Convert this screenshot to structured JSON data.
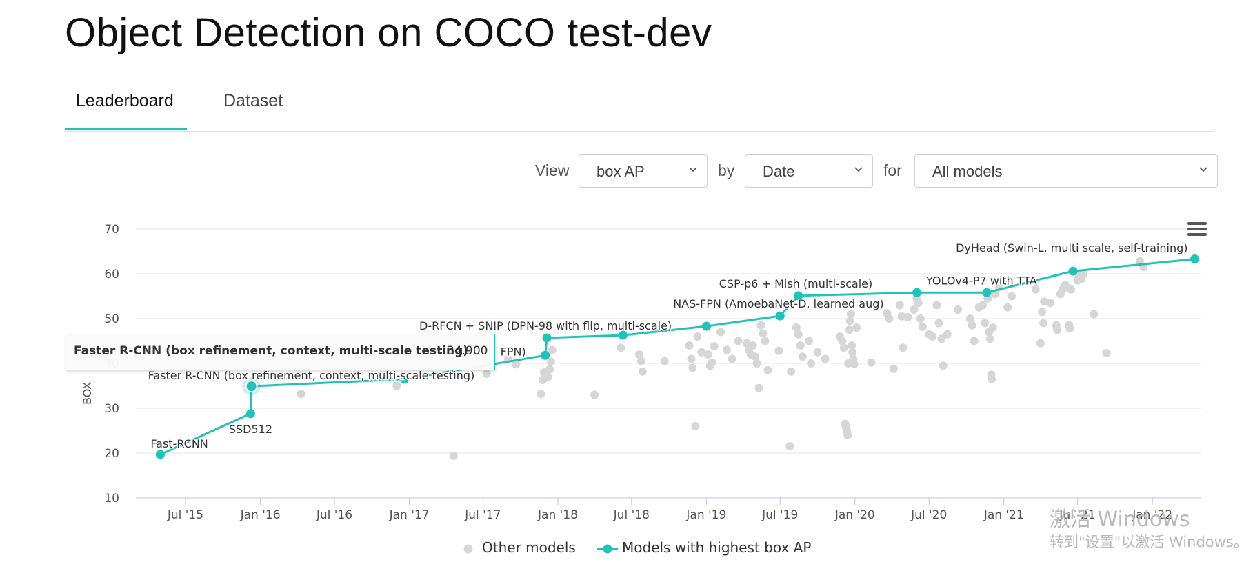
{
  "page": {
    "title": "Object Detection on COCO test-dev"
  },
  "tabs": [
    {
      "label": "Leaderboard",
      "active": true
    },
    {
      "label": "Dataset",
      "active": false
    }
  ],
  "controls": {
    "view_label": "View",
    "view_value": "box AP",
    "by_label": "by",
    "by_value": "Date",
    "for_label": "for",
    "for_value": "All models"
  },
  "colors": {
    "accent": "#21c2b9",
    "other_models": "#d6d6d6",
    "grid": "#e6e6e6"
  },
  "chart_data": {
    "type": "scatter",
    "ylabel": "BOX",
    "ylim": [
      10,
      70
    ],
    "yticks": [
      10,
      20,
      30,
      40,
      50,
      60,
      70
    ],
    "x_range": [
      "2015-03-01",
      "2022-05-01"
    ],
    "xticks": [
      {
        "date": "2015-07-01",
        "label": "Jul '15"
      },
      {
        "date": "2016-01-01",
        "label": "Jan '16"
      },
      {
        "date": "2016-07-01",
        "label": "Jul '16"
      },
      {
        "date": "2017-01-01",
        "label": "Jan '17"
      },
      {
        "date": "2017-07-01",
        "label": "Jul '17"
      },
      {
        "date": "2018-01-01",
        "label": "Jan '18"
      },
      {
        "date": "2018-07-01",
        "label": "Jul '18"
      },
      {
        "date": "2019-01-01",
        "label": "Jan '19"
      },
      {
        "date": "2019-07-01",
        "label": "Jul '19"
      },
      {
        "date": "2020-01-01",
        "label": "Jan '20"
      },
      {
        "date": "2020-07-01",
        "label": "Jul '20"
      },
      {
        "date": "2021-01-01",
        "label": "Jan '21"
      },
      {
        "date": "2021-07-01",
        "label": "Jul '21"
      },
      {
        "date": "2022-01-01",
        "label": "Jan '22"
      }
    ],
    "legend": [
      "Other models",
      "Models with highest box AP"
    ],
    "legend_position": "bottom-center",
    "series": [
      {
        "name": "Models with highest box AP",
        "points": [
          {
            "date": "2015-04-30",
            "y": 19.7,
            "label": "Fast-RCNN"
          },
          {
            "date": "2015-12-08",
            "y": 28.8,
            "label": "SSD512"
          },
          {
            "date": "2015-12-10",
            "y": 34.9,
            "label": "Faster R-CNN (box refinement, context, multi-scale testing)"
          },
          {
            "date": "2016-12-20",
            "y": 36.5,
            "label": ""
          },
          {
            "date": "2017-12-01",
            "y": 41.8,
            "label": "FPN)"
          },
          {
            "date": "2017-12-05",
            "y": 45.7,
            "label": "D-RFCN + SNIP (DPN-98 with flip, multi-scale)"
          },
          {
            "date": "2018-06-10",
            "y": 46.3,
            "label": ""
          },
          {
            "date": "2019-01-01",
            "y": 48.3,
            "label": ""
          },
          {
            "date": "2019-07-01",
            "y": 50.6,
            "label": "NAS-FPN (AmoebaNet-D, learned aug)"
          },
          {
            "date": "2019-08-15",
            "y": 55.1,
            "label": "CSP-p6 + Mish (multi-scale)"
          },
          {
            "date": "2020-06-01",
            "y": 55.8,
            "label": ""
          },
          {
            "date": "2020-11-20",
            "y": 55.8,
            "label": "YOLOv4-P7 with TTA"
          },
          {
            "date": "2021-06-20",
            "y": 60.6,
            "label": "DyHead (Swin-L, multi scale, self-training)"
          },
          {
            "date": "2022-04-15",
            "y": 63.3,
            "label": ""
          }
        ]
      },
      {
        "name": "Other models",
        "points": [
          {
            "date": "2016-04-10",
            "y": 33.2
          },
          {
            "date": "2016-12-01",
            "y": 35.0
          },
          {
            "date": "2017-04-20",
            "y": 19.4
          },
          {
            "date": "2017-07-10",
            "y": 37.7
          },
          {
            "date": "2017-07-15",
            "y": 40.2
          },
          {
            "date": "2017-09-01",
            "y": 41.0
          },
          {
            "date": "2017-09-20",
            "y": 39.8
          },
          {
            "date": "2017-11-20",
            "y": 33.2
          },
          {
            "date": "2017-11-25",
            "y": 36.3
          },
          {
            "date": "2017-11-28",
            "y": 38.0
          },
          {
            "date": "2017-12-08",
            "y": 37.0
          },
          {
            "date": "2017-12-12",
            "y": 38.7
          },
          {
            "date": "2017-12-15",
            "y": 40.4
          },
          {
            "date": "2017-12-18",
            "y": 43.0
          },
          {
            "date": "2018-04-01",
            "y": 33.0
          },
          {
            "date": "2018-06-05",
            "y": 43.5
          },
          {
            "date": "2018-07-20",
            "y": 42.0
          },
          {
            "date": "2018-07-25",
            "y": 40.5
          },
          {
            "date": "2018-07-28",
            "y": 38.2
          },
          {
            "date": "2018-09-20",
            "y": 40.5
          },
          {
            "date": "2018-11-20",
            "y": 44.0
          },
          {
            "date": "2018-11-25",
            "y": 41.0
          },
          {
            "date": "2018-11-28",
            "y": 39.0
          },
          {
            "date": "2018-12-05",
            "y": 26.0
          },
          {
            "date": "2018-12-10",
            "y": 46.0
          },
          {
            "date": "2018-12-20",
            "y": 42.5
          },
          {
            "date": "2019-01-05",
            "y": 42.0
          },
          {
            "date": "2019-01-10",
            "y": 39.5
          },
          {
            "date": "2019-01-15",
            "y": 40.2
          },
          {
            "date": "2019-01-20",
            "y": 43.8
          },
          {
            "date": "2019-02-05",
            "y": 47.0
          },
          {
            "date": "2019-02-20",
            "y": 43.0
          },
          {
            "date": "2019-03-05",
            "y": 41.0
          },
          {
            "date": "2019-03-20",
            "y": 45.0
          },
          {
            "date": "2019-04-10",
            "y": 44.5
          },
          {
            "date": "2019-04-15",
            "y": 43.0
          },
          {
            "date": "2019-04-20",
            "y": 42.0
          },
          {
            "date": "2019-04-25",
            "y": 44.0
          },
          {
            "date": "2019-05-01",
            "y": 41.5
          },
          {
            "date": "2019-05-05",
            "y": 40.0
          },
          {
            "date": "2019-05-10",
            "y": 34.5
          },
          {
            "date": "2019-05-15",
            "y": 48.5
          },
          {
            "date": "2019-05-20",
            "y": 46.7
          },
          {
            "date": "2019-05-25",
            "y": 45.0
          },
          {
            "date": "2019-06-01",
            "y": 38.5
          },
          {
            "date": "2019-06-28",
            "y": 42.8
          },
          {
            "date": "2019-07-25",
            "y": 21.5
          },
          {
            "date": "2019-07-28",
            "y": 38.2
          },
          {
            "date": "2019-08-10",
            "y": 48.0
          },
          {
            "date": "2019-08-15",
            "y": 46.5
          },
          {
            "date": "2019-08-20",
            "y": 44.0
          },
          {
            "date": "2019-08-25",
            "y": 41.5
          },
          {
            "date": "2019-09-10",
            "y": 45.0
          },
          {
            "date": "2019-09-15",
            "y": 40.0
          },
          {
            "date": "2019-10-01",
            "y": 42.5
          },
          {
            "date": "2019-10-20",
            "y": 41.0
          },
          {
            "date": "2019-11-25",
            "y": 46.0
          },
          {
            "date": "2019-12-01",
            "y": 45.0
          },
          {
            "date": "2019-12-05",
            "y": 43.5
          },
          {
            "date": "2019-12-08",
            "y": 26.5
          },
          {
            "date": "2019-12-10",
            "y": 25.8
          },
          {
            "date": "2019-12-12",
            "y": 25.0
          },
          {
            "date": "2019-12-14",
            "y": 24.0
          },
          {
            "date": "2019-12-16",
            "y": 40.0
          },
          {
            "date": "2019-12-18",
            "y": 47.5
          },
          {
            "date": "2019-12-20",
            "y": 49.5
          },
          {
            "date": "2019-12-22",
            "y": 51.0
          },
          {
            "date": "2019-12-24",
            "y": 44.0
          },
          {
            "date": "2019-12-26",
            "y": 42.5
          },
          {
            "date": "2019-12-28",
            "y": 41.0
          },
          {
            "date": "2019-12-30",
            "y": 39.8
          },
          {
            "date": "2020-01-05",
            "y": 48.0
          },
          {
            "date": "2020-02-10",
            "y": 40.2
          },
          {
            "date": "2020-03-20",
            "y": 51.2
          },
          {
            "date": "2020-03-25",
            "y": 50.0
          },
          {
            "date": "2020-04-05",
            "y": 38.8
          },
          {
            "date": "2020-04-20",
            "y": 53.0
          },
          {
            "date": "2020-04-25",
            "y": 50.5
          },
          {
            "date": "2020-04-28",
            "y": 43.5
          },
          {
            "date": "2020-05-10",
            "y": 50.3
          },
          {
            "date": "2020-05-25",
            "y": 52.0
          },
          {
            "date": "2020-06-01",
            "y": 54.5
          },
          {
            "date": "2020-06-05",
            "y": 53.5
          },
          {
            "date": "2020-06-10",
            "y": 50.0
          },
          {
            "date": "2020-06-15",
            "y": 48.2
          },
          {
            "date": "2020-07-01",
            "y": 46.5
          },
          {
            "date": "2020-07-10",
            "y": 46.0
          },
          {
            "date": "2020-07-20",
            "y": 53.0
          },
          {
            "date": "2020-07-25",
            "y": 49.0
          },
          {
            "date": "2020-08-01",
            "y": 45.5
          },
          {
            "date": "2020-08-05",
            "y": 39.5
          },
          {
            "date": "2020-08-15",
            "y": 46.5
          },
          {
            "date": "2020-09-10",
            "y": 52.0
          },
          {
            "date": "2020-10-10",
            "y": 50.0
          },
          {
            "date": "2020-10-15",
            "y": 48.5
          },
          {
            "date": "2020-10-20",
            "y": 45.0
          },
          {
            "date": "2020-11-01",
            "y": 52.5
          },
          {
            "date": "2020-11-10",
            "y": 53.0
          },
          {
            "date": "2020-11-15",
            "y": 49.0
          },
          {
            "date": "2020-11-22",
            "y": 54.5
          },
          {
            "date": "2020-11-25",
            "y": 47.0
          },
          {
            "date": "2020-11-28",
            "y": 45.5
          },
          {
            "date": "2020-12-01",
            "y": 37.5
          },
          {
            "date": "2020-12-02",
            "y": 36.5
          },
          {
            "date": "2020-12-05",
            "y": 48.0
          },
          {
            "date": "2020-12-10",
            "y": 55.5
          },
          {
            "date": "2020-12-20",
            "y": 57.0
          },
          {
            "date": "2021-01-10",
            "y": 52.5
          },
          {
            "date": "2021-01-20",
            "y": 55.0
          },
          {
            "date": "2021-03-20",
            "y": 56.5
          },
          {
            "date": "2021-04-01",
            "y": 44.5
          },
          {
            "date": "2021-04-05",
            "y": 51.5
          },
          {
            "date": "2021-04-08",
            "y": 49.0
          },
          {
            "date": "2021-04-10",
            "y": 53.8
          },
          {
            "date": "2021-04-25",
            "y": 53.5
          },
          {
            "date": "2021-05-10",
            "y": 48.5
          },
          {
            "date": "2021-05-12",
            "y": 47.5
          },
          {
            "date": "2021-05-20",
            "y": 55.5
          },
          {
            "date": "2021-05-25",
            "y": 56.5
          },
          {
            "date": "2021-06-01",
            "y": 57.5
          },
          {
            "date": "2021-06-10",
            "y": 48.5
          },
          {
            "date": "2021-06-12",
            "y": 47.8
          },
          {
            "date": "2021-06-15",
            "y": 56.5
          },
          {
            "date": "2021-07-01",
            "y": 58.5
          },
          {
            "date": "2021-07-05",
            "y": 59.5
          },
          {
            "date": "2021-07-10",
            "y": 58.8
          },
          {
            "date": "2021-07-15",
            "y": 60.0
          },
          {
            "date": "2021-08-10",
            "y": 51.0
          },
          {
            "date": "2021-09-10",
            "y": 42.3
          },
          {
            "date": "2021-12-10",
            "y": 61.5
          },
          {
            "date": "2021-12-01",
            "y": 62.8
          }
        ]
      }
    ],
    "tooltip": {
      "name": "Faster R-CNN (box refinement, context, multi-scale testing)",
      "value": "34.900"
    }
  },
  "watermark": {
    "line1": "激活 Windows",
    "line2": "转到\"设置\"以激活 Windows。"
  }
}
